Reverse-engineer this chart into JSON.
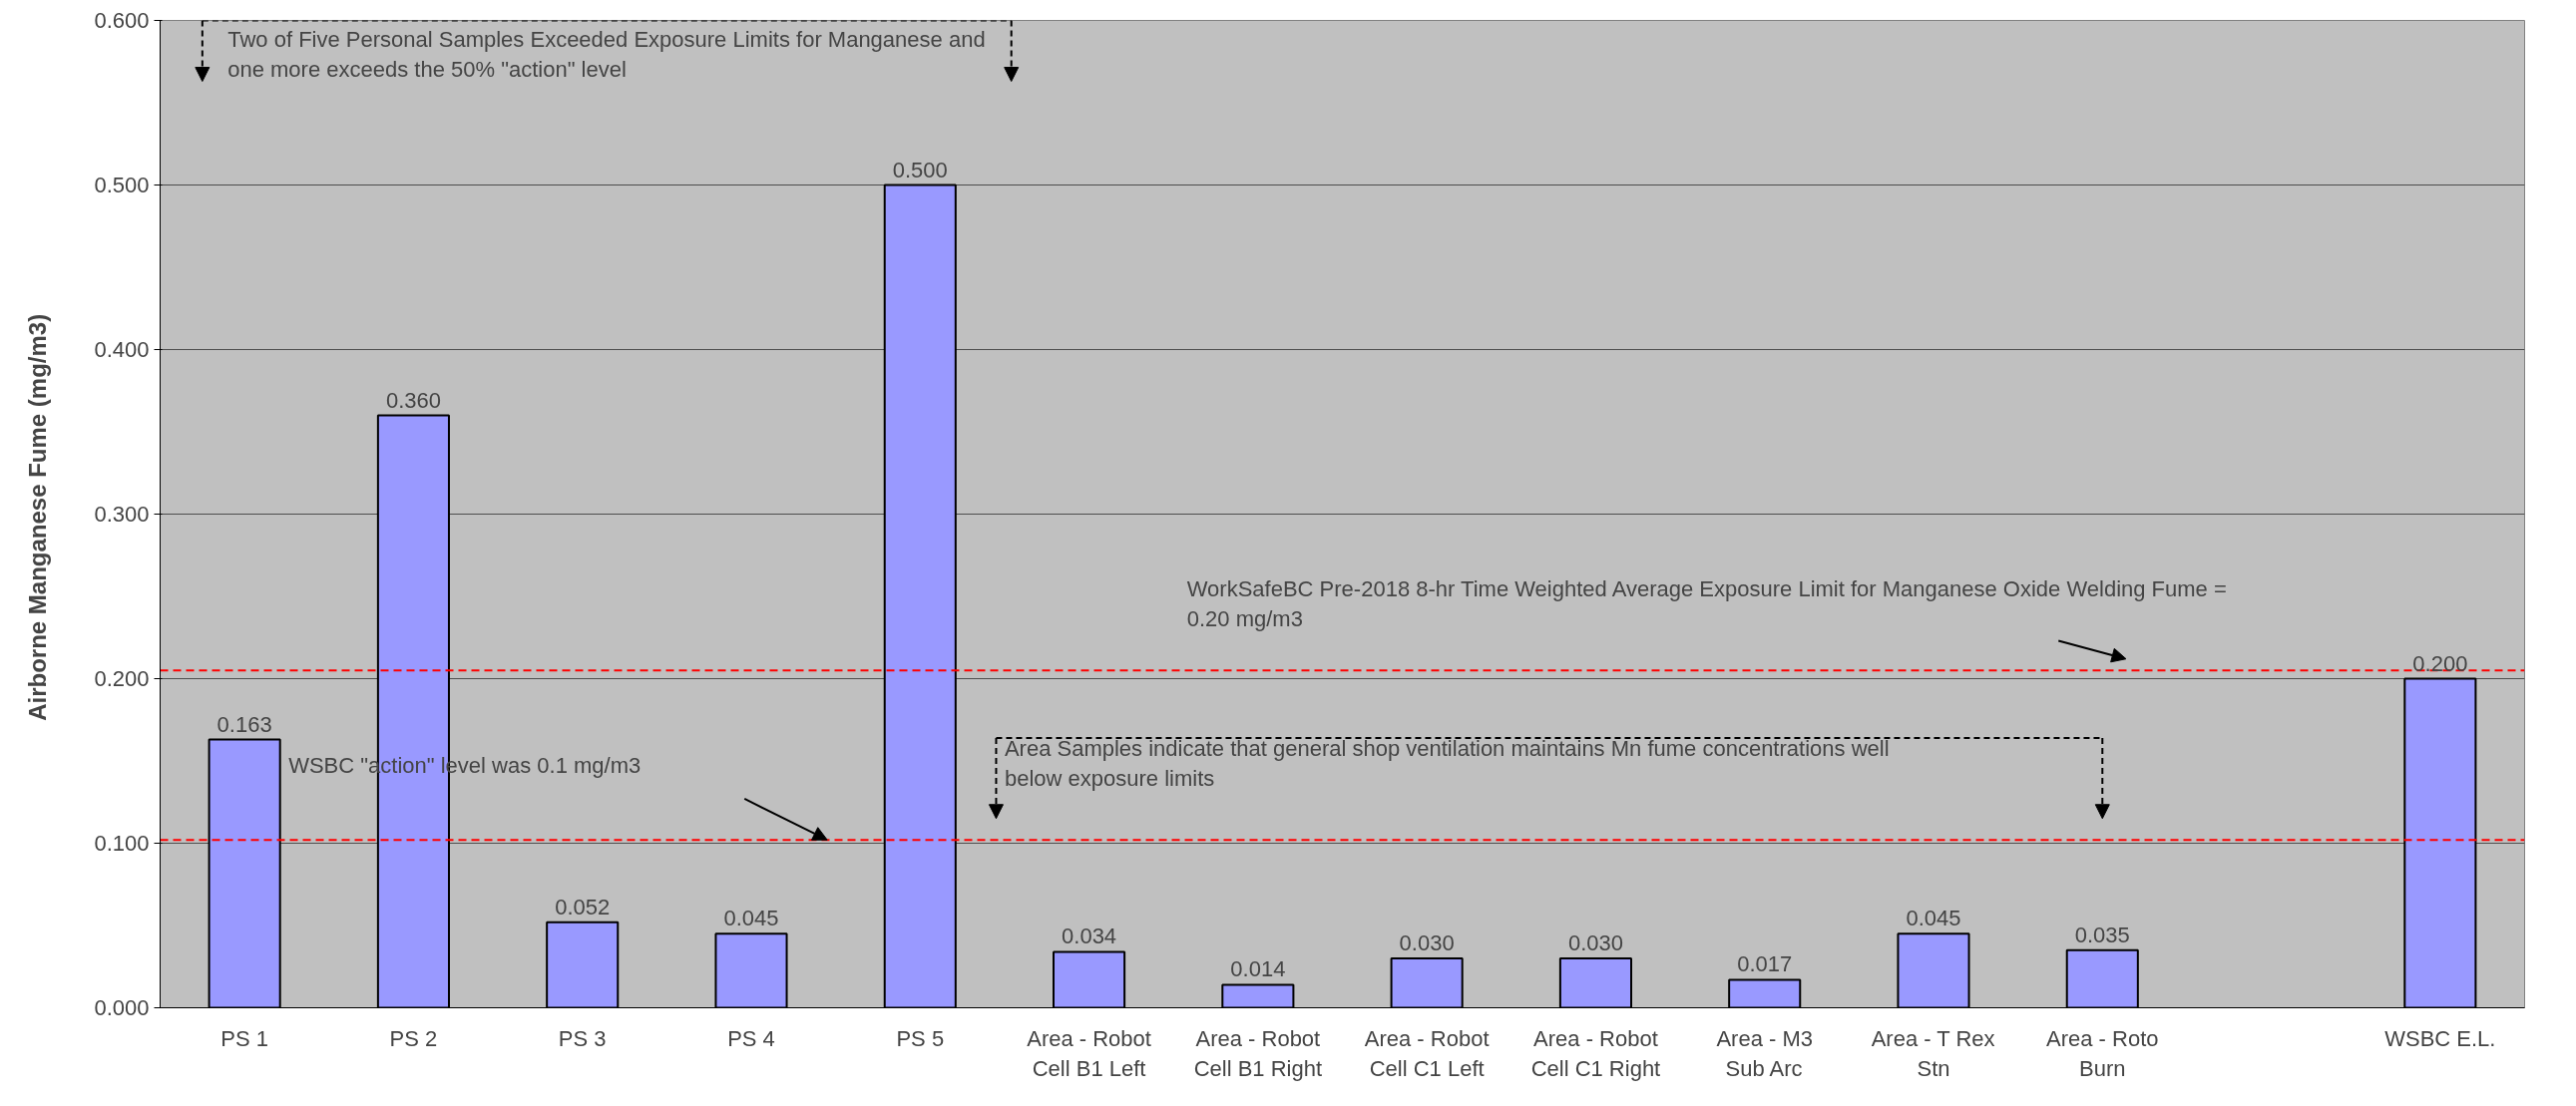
{
  "chart_data": {
    "type": "bar",
    "ylabel": "Airborne Manganese Fume  (mg/m3)",
    "categories": [
      "PS 1",
      "PS 2",
      "PS 3",
      "PS 4",
      "PS 5",
      "Area - Robot\nCell B1 Left",
      "Area - Robot\nCell B1 Right",
      "Area - Robot\nCell C1 Left",
      "Area - Robot\nCell C1 Right",
      "Area - M3\nSub Arc",
      "Area - T Rex\nStn",
      "Area - Roto\nBurn",
      null,
      "WSBC E.L."
    ],
    "values": [
      0.163,
      0.36,
      0.052,
      0.045,
      0.5,
      0.034,
      0.014,
      0.03,
      0.03,
      0.017,
      0.045,
      0.035,
      null,
      0.2
    ],
    "value_labels": [
      "0.163",
      "0.360",
      "0.052",
      "0.045",
      "0.500",
      "0.034",
      "0.014",
      "0.030",
      "0.030",
      "0.017",
      "0.045",
      "0.035",
      null,
      "0.200"
    ],
    "color": "#9999ff",
    "ylim": [
      0,
      0.6
    ],
    "yticks": [
      {
        "value": 0,
        "label": "0.000"
      },
      {
        "value": 0.1,
        "label": "0.100"
      },
      {
        "value": 0.2,
        "label": "0.200"
      },
      {
        "value": 0.3,
        "label": "0.300"
      },
      {
        "value": 0.4,
        "label": "0.400"
      },
      {
        "value": 0.5,
        "label": "0.500"
      },
      {
        "value": 0.6,
        "label": "0.600"
      }
    ],
    "grid": "y",
    "ref_lines": [
      {
        "axis": "y",
        "value": 0.205,
        "color": "#ff0000",
        "line_style": "dashed"
      },
      {
        "axis": "y",
        "value": 0.102,
        "color": "#ff0000",
        "line_style": "dashed"
      }
    ],
    "annotations": [
      "Two of Five Personal Samples Exceeded Exposure Limits for Manganese and\none more exceeds the 50% \"action\" level",
      "WSBC \"action\" level was 0.1 mg/m3",
      "WorkSafeBC Pre-2018 8-hr Time Weighted Average Exposure Limit for Manganese Oxide Welding Fume =\n0.20 mg/m3",
      "Area Samples indicate that general shop ventilation maintains Mn fume concentrations well\nbelow exposure limits"
    ]
  }
}
